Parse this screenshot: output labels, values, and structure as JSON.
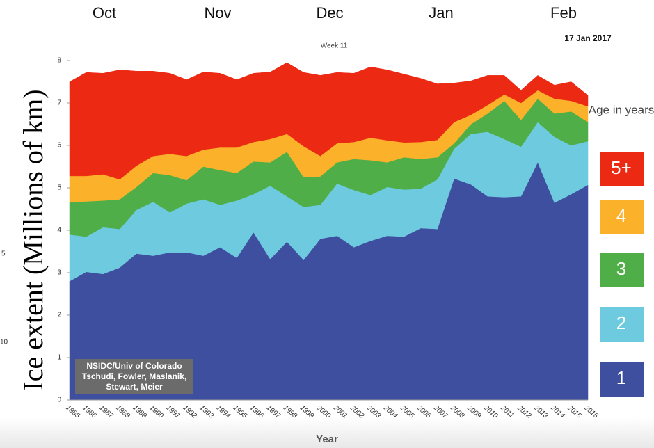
{
  "chart_data": {
    "type": "area",
    "stacked": true,
    "header_labels": [
      "Oct",
      "Nov",
      "Dec",
      "Jan",
      "Feb"
    ],
    "date_label": "17 Jan 2017",
    "subtitle": "Week 11",
    "y_label": "Ice extent (Millions of km)",
    "x_label": "Year",
    "legend_title": "Age in years",
    "credit": [
      "NSIDC/Univ of Colorado",
      "Tschudi, Fowler, Maslanik,",
      "Stewart, Meier"
    ],
    "stray_labels": [
      "5",
      "10"
    ],
    "grid": false,
    "ylim": [
      0,
      8
    ],
    "yticks": [
      0,
      1,
      2,
      3,
      4,
      5,
      6,
      7,
      8
    ],
    "categories": [
      "1985",
      "1986",
      "1987",
      "1988",
      "1989",
      "1990",
      "1991",
      "1992",
      "1993",
      "1994",
      "1995",
      "1996",
      "1997",
      "1998",
      "1999",
      "2000",
      "2001",
      "2002",
      "2003",
      "2004",
      "2005",
      "2006",
      "2007",
      "2008",
      "2009",
      "2010",
      "2011",
      "2012",
      "2013",
      "2014",
      "2015",
      "2016"
    ],
    "series": [
      {
        "name": "1",
        "color": "#3f4fa0",
        "values": [
          2.8,
          3.02,
          2.97,
          3.12,
          3.45,
          3.4,
          3.48,
          3.48,
          3.4,
          3.6,
          3.35,
          3.95,
          3.32,
          3.73,
          3.3,
          3.8,
          3.87,
          3.6,
          3.75,
          3.87,
          3.85,
          4.05,
          4.03,
          5.22,
          5.08,
          4.8,
          4.78,
          4.8,
          5.6,
          4.65,
          4.85,
          5.07
        ]
      },
      {
        "name": "2",
        "color": "#6ecadf",
        "values": [
          1.1,
          0.83,
          1.1,
          0.91,
          1.03,
          1.27,
          0.94,
          1.15,
          1.33,
          1.0,
          1.35,
          0.9,
          1.73,
          1.07,
          1.25,
          0.8,
          1.23,
          1.35,
          1.08,
          1.15,
          1.11,
          0.93,
          1.17,
          0.7,
          1.19,
          1.52,
          1.37,
          1.17,
          0.95,
          1.55,
          1.15,
          1.03
        ]
      },
      {
        "name": "3",
        "color": "#4fae48",
        "values": [
          0.77,
          0.83,
          0.63,
          0.7,
          0.54,
          0.68,
          0.88,
          0.55,
          0.77,
          0.82,
          0.65,
          0.77,
          0.55,
          1.05,
          0.7,
          0.67,
          0.5,
          0.73,
          0.82,
          0.58,
          0.76,
          0.7,
          0.52,
          0.13,
          0.23,
          0.43,
          0.9,
          0.63,
          0.55,
          0.55,
          0.8,
          0.45
        ]
      },
      {
        "name": "4",
        "color": "#fbb12a",
        "values": [
          0.61,
          0.6,
          0.62,
          0.47,
          0.5,
          0.4,
          0.5,
          0.57,
          0.4,
          0.53,
          0.6,
          0.46,
          0.55,
          0.42,
          0.73,
          0.48,
          0.45,
          0.4,
          0.53,
          0.52,
          0.35,
          0.4,
          0.41,
          0.5,
          0.22,
          0.2,
          0.15,
          0.4,
          0.2,
          0.35,
          0.25,
          0.37
        ]
      },
      {
        "name": "5+",
        "color": "#ec2a14",
        "values": [
          2.22,
          2.44,
          2.38,
          2.58,
          2.23,
          2.0,
          1.9,
          1.8,
          1.83,
          1.75,
          1.6,
          1.62,
          1.58,
          1.68,
          1.74,
          1.9,
          1.67,
          1.62,
          1.67,
          1.66,
          1.61,
          1.5,
          1.32,
          0.92,
          0.8,
          0.7,
          0.45,
          0.3,
          0.35,
          0.32,
          0.45,
          0.26
        ]
      }
    ]
  }
}
